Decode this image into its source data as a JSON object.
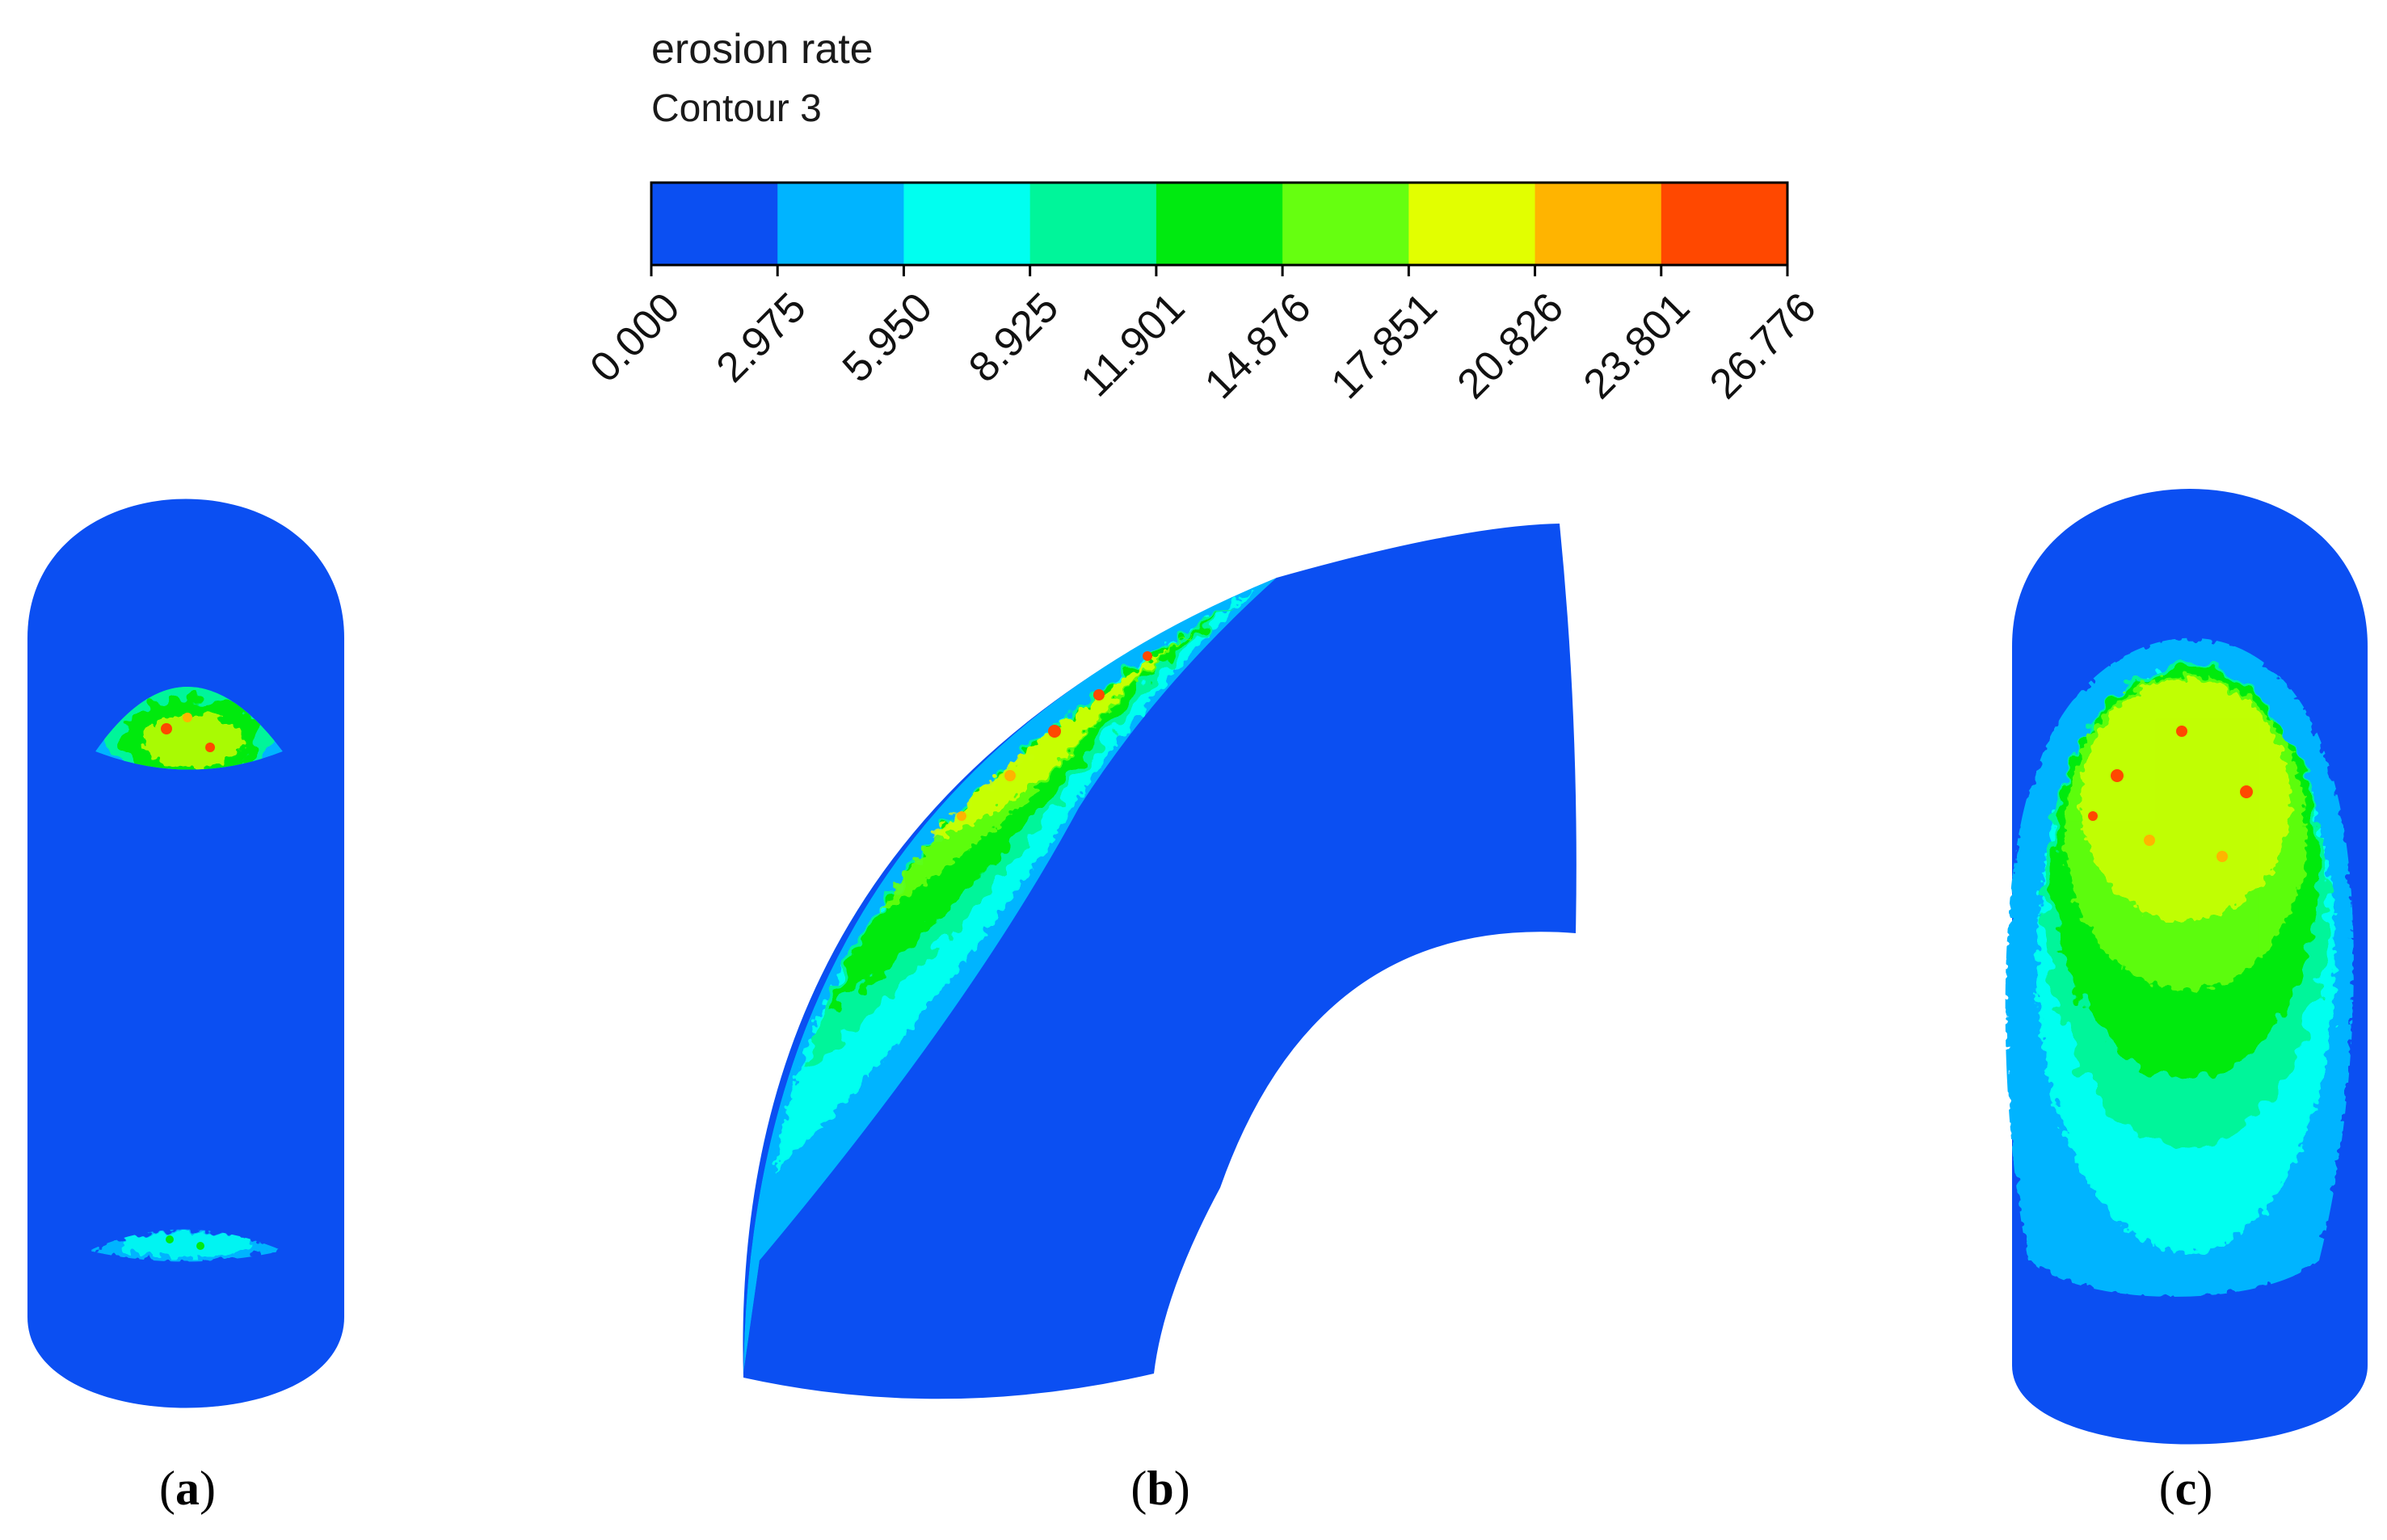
{
  "legend": {
    "title": "erosion rate",
    "subtitle": "Contour 3",
    "tick_labels": [
      "0.000",
      "2.975",
      "5.950",
      "8.925",
      "11.901",
      "14.876",
      "17.851",
      "20.826",
      "23.801",
      "26.776"
    ],
    "bin_colors": [
      "#0b4ff2",
      "#00b4ff",
      "#00fff0",
      "#00f59a",
      "#00ea10",
      "#66ff10",
      "#e2ff00",
      "#ffb400",
      "#ff4800"
    ]
  },
  "panels": [
    {
      "open": "(",
      "letter": "a",
      "close": ")"
    },
    {
      "open": "(",
      "letter": "b",
      "close": ")"
    },
    {
      "open": "(",
      "letter": "c",
      "close": ")"
    }
  ],
  "colors": {
    "base": "#0b4ff2",
    "level_1": "#00b4ff",
    "level_2": "#00fff0",
    "level_3": "#00f59a",
    "level_4": "#00ea10",
    "level_5": "#66ff10",
    "level_6": "#e2ff00",
    "level_7": "#ffb400",
    "level_8": "#ff4800"
  }
}
